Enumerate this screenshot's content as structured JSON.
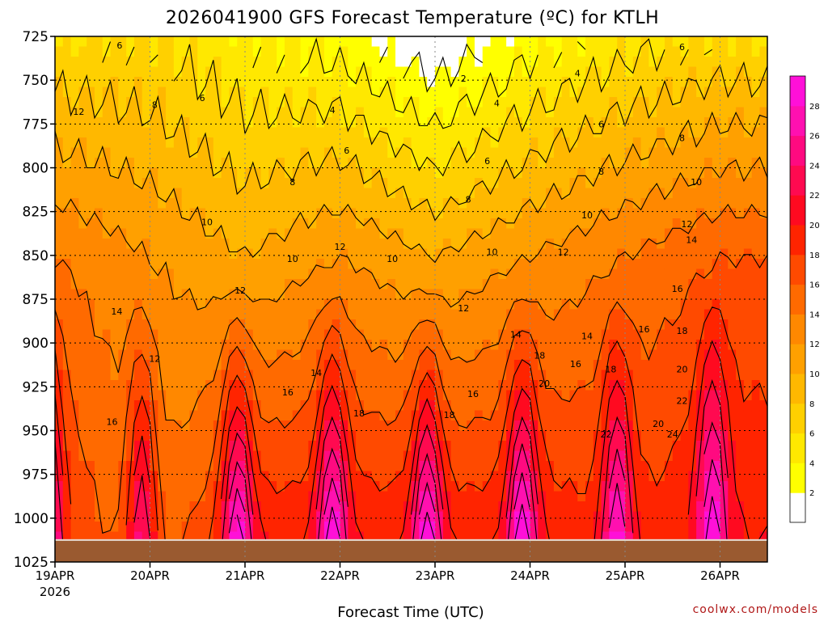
{
  "chart_data": {
    "type": "heatmap",
    "title": "2026041900 GFS Forecast Temperature (ºC) for KTLH",
    "xlabel": "Forecast Time (UTC)",
    "ylabel": "",
    "credit": "coolwx.com/models",
    "y_axis": {
      "label_values": [
        "725",
        "750",
        "775",
        "800",
        "825",
        "850",
        "875",
        "900",
        "925",
        "950",
        "975",
        "1000",
        "1025"
      ],
      "range_hpa": [
        725,
        1025
      ],
      "direction": "pressure increases downward"
    },
    "x_axis": {
      "tick_labels": [
        "19APR",
        "20APR",
        "21APR",
        "22APR",
        "23APR",
        "24APR",
        "25APR",
        "26APR"
      ],
      "year_label": "2026",
      "range_days": [
        0,
        7.5
      ]
    },
    "colorbar": {
      "labels": [
        "2",
        "4",
        "6",
        "8",
        "10",
        "12",
        "14",
        "16",
        "18",
        "20",
        "22",
        "24",
        "26",
        "28"
      ],
      "colors": [
        "#ffffff",
        "#ffff00",
        "#ffe800",
        "#ffd000",
        "#ffb800",
        "#ffa000",
        "#ff8800",
        "#ff6a00",
        "#ff4a00",
        "#ff2400",
        "#ff0a20",
        "#ff0a50",
        "#ff0a80",
        "#ff10b0",
        "#ff10d8"
      ],
      "range_c": [
        0,
        30
      ]
    },
    "contour_interval_c": 2,
    "temperature_summary": [
      {
        "time": "19APR 00Z",
        "t725": 6,
        "t850": 14,
        "t1000": 26
      },
      {
        "time": "20APR 00Z",
        "t725": 6,
        "t850": 12,
        "t1000": 20
      },
      {
        "time": "21APR 00Z",
        "t725": 4,
        "t850": 10,
        "t1000": 28
      },
      {
        "time": "22APR 00Z",
        "t725": 3,
        "t850": 12,
        "t1000": 28
      },
      {
        "time": "23APR 00Z",
        "t725": 0,
        "t850": 10,
        "t1000": 28
      },
      {
        "time": "24APR 00Z",
        "t725": 3,
        "t850": 12,
        "t1000": 28
      },
      {
        "time": "25APR 00Z",
        "t725": 5,
        "t850": 14,
        "t1000": 26
      },
      {
        "time": "26APR 00Z",
        "t725": 6,
        "t850": 16,
        "t1000": 28
      }
    ],
    "contour_labels": [
      {
        "value": "6",
        "t": 0.68,
        "p": 730
      },
      {
        "value": "12",
        "t": 0.25,
        "p": 768
      },
      {
        "value": "8",
        "t": 1.05,
        "p": 764
      },
      {
        "value": "6",
        "t": 1.55,
        "p": 760
      },
      {
        "value": "10",
        "t": 1.6,
        "p": 831
      },
      {
        "value": "4",
        "t": 2.92,
        "p": 767
      },
      {
        "value": "6",
        "t": 3.07,
        "p": 790
      },
      {
        "value": "8",
        "t": 2.5,
        "p": 808
      },
      {
        "value": "10",
        "t": 2.5,
        "p": 852
      },
      {
        "value": "12",
        "t": 3.0,
        "p": 845
      },
      {
        "value": "12",
        "t": 1.95,
        "p": 870
      },
      {
        "value": "10",
        "t": 3.55,
        "p": 852
      },
      {
        "value": "2",
        "t": 4.3,
        "p": 749
      },
      {
        "value": "4",
        "t": 4.65,
        "p": 763
      },
      {
        "value": "6",
        "t": 4.55,
        "p": 796
      },
      {
        "value": "8",
        "t": 4.35,
        "p": 818
      },
      {
        "value": "10",
        "t": 4.6,
        "p": 848
      },
      {
        "value": "12",
        "t": 4.3,
        "p": 880
      },
      {
        "value": "14",
        "t": 4.85,
        "p": 895
      },
      {
        "value": "18",
        "t": 4.15,
        "p": 941
      },
      {
        "value": "16",
        "t": 4.4,
        "p": 929
      },
      {
        "value": "4",
        "t": 5.5,
        "p": 746
      },
      {
        "value": "6",
        "t": 5.75,
        "p": 775
      },
      {
        "value": "8",
        "t": 5.75,
        "p": 802
      },
      {
        "value": "10",
        "t": 5.6,
        "p": 827
      },
      {
        "value": "12",
        "t": 5.35,
        "p": 848
      },
      {
        "value": "14",
        "t": 5.6,
        "p": 896
      },
      {
        "value": "18",
        "t": 5.1,
        "p": 907
      },
      {
        "value": "20",
        "t": 5.15,
        "p": 923
      },
      {
        "value": "16",
        "t": 5.48,
        "p": 912
      },
      {
        "value": "6",
        "t": 6.6,
        "p": 731
      },
      {
        "value": "8",
        "t": 6.6,
        "p": 783
      },
      {
        "value": "10",
        "t": 6.75,
        "p": 808
      },
      {
        "value": "12",
        "t": 6.65,
        "p": 832
      },
      {
        "value": "14",
        "t": 6.7,
        "p": 841
      },
      {
        "value": "16",
        "t": 6.55,
        "p": 869
      },
      {
        "value": "16",
        "t": 6.2,
        "p": 892
      },
      {
        "value": "18",
        "t": 6.6,
        "p": 893
      },
      {
        "value": "18",
        "t": 5.85,
        "p": 915
      },
      {
        "value": "20",
        "t": 6.6,
        "p": 915
      },
      {
        "value": "20",
        "t": 6.35,
        "p": 946
      },
      {
        "value": "22",
        "t": 5.8,
        "p": 952
      },
      {
        "value": "22",
        "t": 6.6,
        "p": 933
      },
      {
        "value": "24",
        "t": 6.5,
        "p": 952
      },
      {
        "value": "14",
        "t": 0.65,
        "p": 882
      },
      {
        "value": "12",
        "t": 1.05,
        "p": 909
      },
      {
        "value": "16",
        "t": 0.6,
        "p": 945
      },
      {
        "value": "14",
        "t": 2.75,
        "p": 917
      },
      {
        "value": "16",
        "t": 2.45,
        "p": 928
      },
      {
        "value": "18",
        "t": 3.2,
        "p": 940
      }
    ]
  }
}
